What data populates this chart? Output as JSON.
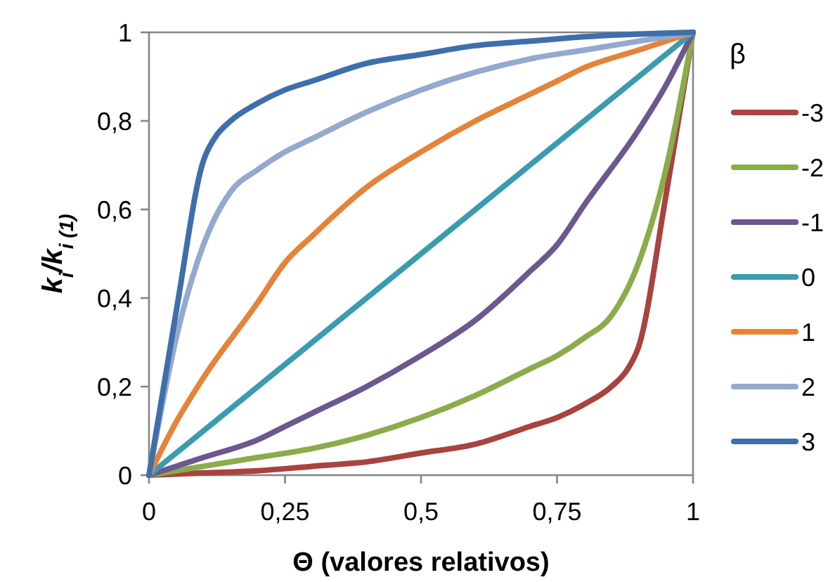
{
  "chart_data": {
    "type": "line",
    "xlabel": "Θ (valores relativos)",
    "ylabel": "k$_{i}$/k$_{i (1)}$",
    "legend_title": "β",
    "legend": "right",
    "grid": false,
    "marker": "none",
    "line_style": "solid",
    "xlim": [
      0,
      1
    ],
    "ylim": [
      0,
      1
    ],
    "xticks": [
      0,
      {
        "value": 0.25,
        "label": "0,25"
      },
      {
        "value": 0.5,
        "label": "0,5"
      },
      {
        "value": 0.75,
        "label": "0,75"
      },
      1
    ],
    "yticks": [
      0,
      {
        "value": 0.2,
        "label": "0,2"
      },
      {
        "value": 0.4,
        "label": "0,4"
      },
      {
        "value": 0.6,
        "label": "0,6"
      },
      {
        "value": 0.8,
        "label": "0,8"
      },
      1
    ],
    "series": [
      {
        "name": "-3",
        "color": "#a84340",
        "x": [
          0,
          0.1,
          0.2,
          0.3,
          0.4,
          0.5,
          0.6,
          0.7,
          0.75,
          0.8,
          0.85,
          0.88,
          0.9,
          0.95,
          1
        ],
        "values": [
          0,
          0.005,
          0.01,
          0.02,
          0.03,
          0.05,
          0.07,
          0.11,
          0.13,
          0.16,
          0.2,
          0.24,
          0.29,
          0.63,
          1
        ]
      },
      {
        "name": "-2",
        "color": "#8aac4a",
        "x": [
          0,
          0.1,
          0.2,
          0.3,
          0.4,
          0.5,
          0.6,
          0.7,
          0.75,
          0.8,
          0.85,
          0.9,
          0.95,
          1
        ],
        "values": [
          0,
          0.02,
          0.04,
          0.06,
          0.09,
          0.13,
          0.18,
          0.24,
          0.27,
          0.31,
          0.36,
          0.48,
          0.69,
          1
        ]
      },
      {
        "name": "-1",
        "color": "#6c578f",
        "x": [
          0,
          0.1,
          0.2,
          0.25,
          0.3,
          0.4,
          0.5,
          0.6,
          0.7,
          0.75,
          0.8,
          0.9,
          0.95,
          1
        ],
        "values": [
          0,
          0.04,
          0.08,
          0.11,
          0.14,
          0.2,
          0.27,
          0.35,
          0.46,
          0.52,
          0.61,
          0.78,
          0.88,
          1
        ]
      },
      {
        "name": "0",
        "color": "#3b9bb0",
        "x": [
          0,
          1
        ],
        "values": [
          0,
          1
        ]
      },
      {
        "name": "1",
        "color": "#e3843a",
        "x": [
          0,
          0.05,
          0.1,
          0.2,
          0.25,
          0.3,
          0.4,
          0.5,
          0.6,
          0.7,
          0.75,
          0.8,
          0.9,
          1
        ],
        "values": [
          0,
          0.12,
          0.22,
          0.39,
          0.48,
          0.54,
          0.65,
          0.73,
          0.8,
          0.86,
          0.89,
          0.92,
          0.96,
          1
        ]
      },
      {
        "name": "2",
        "color": "#93a9d0",
        "x": [
          0,
          0.05,
          0.1,
          0.15,
          0.2,
          0.25,
          0.3,
          0.4,
          0.5,
          0.6,
          0.7,
          0.8,
          0.9,
          1
        ],
        "values": [
          0,
          0.31,
          0.52,
          0.64,
          0.69,
          0.73,
          0.76,
          0.82,
          0.87,
          0.91,
          0.94,
          0.96,
          0.98,
          1
        ]
      },
      {
        "name": "3",
        "color": "#3f6fab",
        "x": [
          0,
          0.05,
          0.1,
          0.12,
          0.15,
          0.2,
          0.25,
          0.3,
          0.4,
          0.5,
          0.6,
          0.7,
          0.8,
          1
        ],
        "values": [
          0,
          0.37,
          0.71,
          0.76,
          0.8,
          0.84,
          0.87,
          0.89,
          0.93,
          0.95,
          0.97,
          0.98,
          0.99,
          1
        ]
      }
    ]
  }
}
